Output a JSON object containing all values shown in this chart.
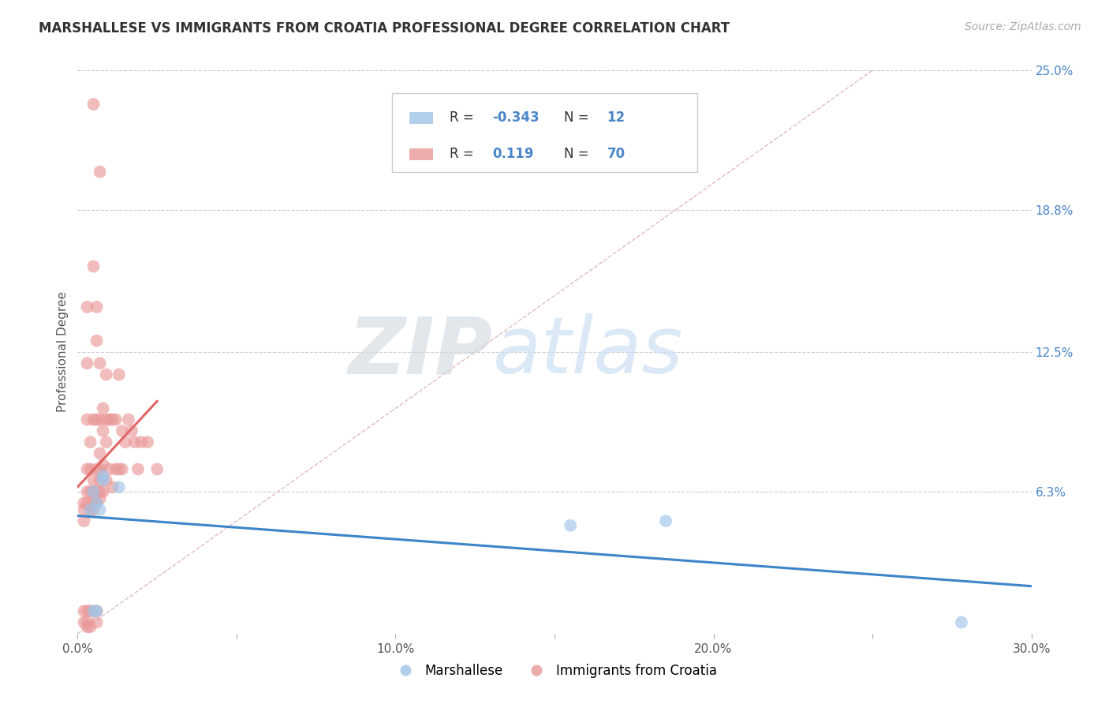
{
  "title": "MARSHALLESE VS IMMIGRANTS FROM CROATIA PROFESSIONAL DEGREE CORRELATION CHART",
  "source": "Source: ZipAtlas.com",
  "ylabel": "Professional Degree",
  "xlim": [
    0.0,
    0.3
  ],
  "ylim": [
    0.0,
    0.25
  ],
  "xtick_vals": [
    0.0,
    0.05,
    0.1,
    0.15,
    0.2,
    0.25,
    0.3
  ],
  "xtick_labels": [
    "0.0%",
    "",
    "",
    "",
    "",
    "",
    "30.0%"
  ],
  "ytick_vals_right": [
    0.25,
    0.188,
    0.125,
    0.063
  ],
  "ytick_labels_right": [
    "25.0%",
    "18.8%",
    "12.5%",
    "6.3%"
  ],
  "legend_R_blue": "-0.343",
  "legend_N_blue": "12",
  "legend_R_pink": "0.119",
  "legend_N_pink": "70",
  "blue_color": "#9fc5e8",
  "pink_color": "#ea9999",
  "trendline_blue_color": "#3d85c8",
  "trendline_pink_color": "#e06666",
  "diagonal_color": "#d5a0a0",
  "watermark_color": "#cce0f5",
  "blue_scatter_x": [
    0.004,
    0.005,
    0.006,
    0.007,
    0.008,
    0.008,
    0.013,
    0.005,
    0.006,
    0.155,
    0.185,
    0.278
  ],
  "blue_scatter_y": [
    0.055,
    0.063,
    0.058,
    0.055,
    0.068,
    0.07,
    0.065,
    0.01,
    0.01,
    0.048,
    0.05,
    0.005
  ],
  "pink_scatter_x": [
    0.002,
    0.002,
    0.002,
    0.002,
    0.002,
    0.003,
    0.003,
    0.003,
    0.003,
    0.003,
    0.003,
    0.003,
    0.003,
    0.003,
    0.004,
    0.004,
    0.004,
    0.004,
    0.004,
    0.004,
    0.005,
    0.005,
    0.005,
    0.005,
    0.005,
    0.005,
    0.005,
    0.005,
    0.006,
    0.006,
    0.006,
    0.006,
    0.006,
    0.006,
    0.006,
    0.006,
    0.007,
    0.007,
    0.007,
    0.007,
    0.007,
    0.007,
    0.007,
    0.007,
    0.008,
    0.008,
    0.008,
    0.008,
    0.009,
    0.009,
    0.009,
    0.009,
    0.01,
    0.01,
    0.011,
    0.011,
    0.012,
    0.012,
    0.013,
    0.013,
    0.014,
    0.014,
    0.015,
    0.016,
    0.017,
    0.018,
    0.019,
    0.02,
    0.022,
    0.025
  ],
  "pink_scatter_y": [
    0.058,
    0.055,
    0.05,
    0.01,
    0.005,
    0.145,
    0.12,
    0.095,
    0.073,
    0.063,
    0.058,
    0.01,
    0.005,
    0.003,
    0.085,
    0.073,
    0.063,
    0.055,
    0.01,
    0.003,
    0.235,
    0.163,
    0.095,
    0.068,
    0.063,
    0.06,
    0.058,
    0.055,
    0.145,
    0.13,
    0.095,
    0.073,
    0.063,
    0.058,
    0.01,
    0.005,
    0.205,
    0.12,
    0.095,
    0.08,
    0.073,
    0.068,
    0.063,
    0.06,
    0.1,
    0.09,
    0.075,
    0.063,
    0.115,
    0.095,
    0.085,
    0.068,
    0.095,
    0.073,
    0.095,
    0.065,
    0.095,
    0.073,
    0.115,
    0.073,
    0.09,
    0.073,
    0.085,
    0.095,
    0.09,
    0.085,
    0.073,
    0.085,
    0.085,
    0.073
  ]
}
